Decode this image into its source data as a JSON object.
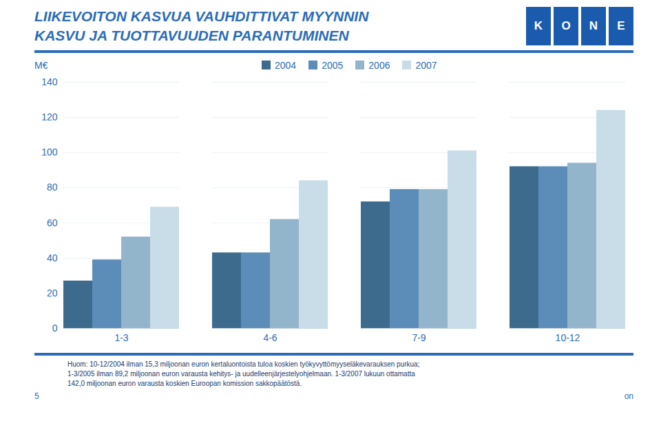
{
  "chart_data": {
    "type": "bar",
    "title": "LIIKEVOITON KASVUA VAUHDITTIVAT MYYNNIN\nKASVU JA TUOTTAVUUDEN PARANTUMINEN",
    "ylabel": "M€",
    "categories": [
      "1-3",
      "4-6",
      "7-9",
      "10-12"
    ],
    "series": [
      {
        "name": "2004",
        "color": "#3D6B8E",
        "values": [
          27,
          43,
          72,
          92
        ]
      },
      {
        "name": "2005",
        "color": "#5B8DB8",
        "values": [
          39,
          43,
          79,
          92
        ]
      },
      {
        "name": "2006",
        "color": "#93B5CC",
        "values": [
          52,
          62,
          79,
          94
        ]
      },
      {
        "name": "2007",
        "color": "#C9DDE9",
        "values": [
          69,
          84,
          101,
          124
        ]
      }
    ],
    "ylim": [
      0,
      140
    ],
    "yticks": [
      0,
      20,
      40,
      60,
      80,
      100,
      120,
      140
    ],
    "grid": true,
    "legend": "top",
    "annotations": [
      "KONE",
      "Huom: 10-12/2004 ilman 15,3 miljoonan euron kertaluontoista tuloa koskien työkyvyttömyyseläkevarauksen purkua;\n1-3/2005 ilman 89,2 miljoonan euron varausta kehitys- ja uudelleenjärjestelyohjelmaan. 1-3/2007 lukuun ottamatta\n142,0 miljoonan euron varausta koskien Euroopan komission sakkopäätöstä.",
      "5",
      "on"
    ]
  }
}
